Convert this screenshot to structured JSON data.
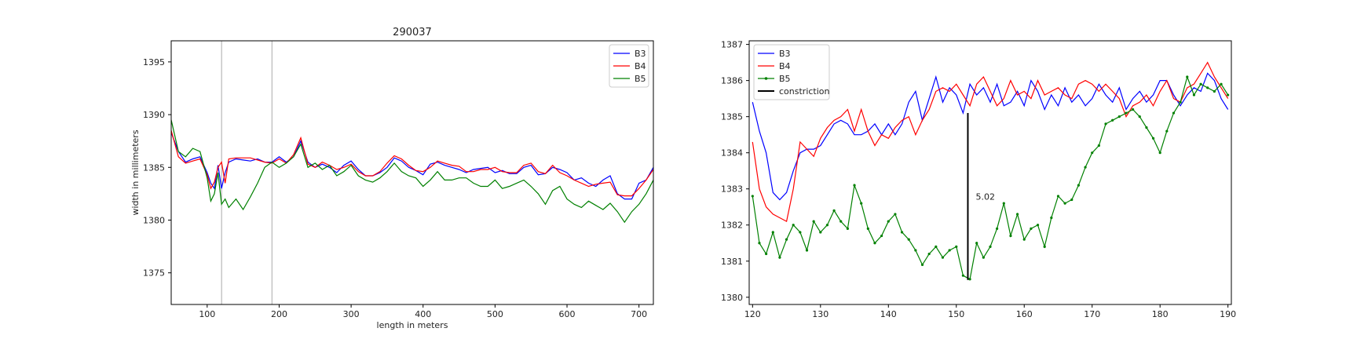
{
  "chart_data": [
    {
      "type": "line",
      "title": "290037",
      "xlabel": "length in meters",
      "ylabel": "width in millimeters",
      "xlim": [
        50,
        720
      ],
      "ylim": [
        1372,
        1397
      ],
      "xticks": [
        100,
        200,
        300,
        400,
        500,
        600,
        700
      ],
      "yticks": [
        1375,
        1380,
        1385,
        1390,
        1395
      ],
      "vlines": [
        120,
        190
      ],
      "legend": "top-right",
      "series": [
        {
          "name": "B3",
          "color": "#0000ff",
          "x": [
            50,
            60,
            70,
            80,
            90,
            100,
            105,
            110,
            115,
            120,
            125,
            130,
            140,
            150,
            160,
            170,
            180,
            190,
            200,
            210,
            220,
            230,
            240,
            250,
            260,
            270,
            280,
            290,
            300,
            310,
            320,
            330,
            340,
            350,
            360,
            370,
            380,
            390,
            400,
            410,
            420,
            430,
            440,
            450,
            460,
            470,
            480,
            490,
            500,
            510,
            520,
            530,
            540,
            550,
            560,
            570,
            580,
            590,
            600,
            610,
            620,
            630,
            640,
            650,
            660,
            670,
            680,
            690,
            700,
            710,
            720
          ],
          "y": [
            1388.3,
            1386.5,
            1385.5,
            1385.8,
            1386.0,
            1384.5,
            1383.5,
            1383.0,
            1385.2,
            1383.0,
            1384.5,
            1385.5,
            1385.8,
            1385.7,
            1385.6,
            1385.8,
            1385.5,
            1385.5,
            1386.0,
            1385.5,
            1386.0,
            1387.5,
            1385.5,
            1385.0,
            1385.3,
            1385.0,
            1384.5,
            1385.2,
            1385.6,
            1384.8,
            1384.2,
            1384.2,
            1384.5,
            1385.0,
            1385.9,
            1385.6,
            1385.0,
            1384.7,
            1384.3,
            1385.3,
            1385.5,
            1385.2,
            1385.0,
            1384.8,
            1384.5,
            1384.8,
            1384.9,
            1385.0,
            1384.5,
            1384.7,
            1384.4,
            1384.4,
            1385.0,
            1385.2,
            1384.3,
            1384.4,
            1385.0,
            1384.8,
            1384.5,
            1383.8,
            1384.0,
            1383.5,
            1383.2,
            1383.8,
            1384.2,
            1382.5,
            1382.0,
            1382.0,
            1383.5,
            1383.8,
            1385.0
          ]
        },
        {
          "name": "B4",
          "color": "#ff0000",
          "x": [
            50,
            60,
            70,
            80,
            90,
            100,
            105,
            110,
            115,
            120,
            125,
            130,
            140,
            150,
            160,
            170,
            180,
            190,
            200,
            210,
            220,
            230,
            240,
            250,
            260,
            270,
            280,
            290,
            300,
            310,
            320,
            330,
            340,
            350,
            360,
            370,
            380,
            390,
            400,
            410,
            420,
            430,
            440,
            450,
            460,
            470,
            480,
            490,
            500,
            510,
            520,
            530,
            540,
            550,
            560,
            570,
            580,
            590,
            600,
            610,
            620,
            630,
            640,
            650,
            660,
            670,
            680,
            690,
            700,
            710,
            720
          ],
          "y": [
            1388.5,
            1386.0,
            1385.4,
            1385.6,
            1385.8,
            1384.3,
            1383.0,
            1383.6,
            1385.0,
            1385.5,
            1383.5,
            1385.8,
            1385.9,
            1385.9,
            1385.9,
            1385.7,
            1385.5,
            1385.4,
            1385.8,
            1385.4,
            1386.2,
            1387.8,
            1385.3,
            1385.0,
            1385.5,
            1385.2,
            1384.8,
            1385.0,
            1385.3,
            1384.6,
            1384.2,
            1384.2,
            1384.6,
            1385.4,
            1386.1,
            1385.8,
            1385.2,
            1384.7,
            1384.6,
            1385.0,
            1385.6,
            1385.4,
            1385.2,
            1385.1,
            1384.6,
            1384.6,
            1384.8,
            1384.8,
            1385.0,
            1384.6,
            1384.5,
            1384.5,
            1385.2,
            1385.4,
            1384.6,
            1384.4,
            1385.2,
            1384.5,
            1384.2,
            1383.8,
            1383.5,
            1383.2,
            1383.4,
            1383.5,
            1383.6,
            1382.4,
            1382.3,
            1382.3,
            1383.0,
            1383.8,
            1384.8
          ]
        },
        {
          "name": "B5",
          "color": "#008000",
          "x": [
            50,
            60,
            70,
            80,
            90,
            100,
            105,
            110,
            115,
            120,
            125,
            130,
            140,
            150,
            160,
            170,
            180,
            190,
            200,
            210,
            220,
            230,
            240,
            250,
            260,
            270,
            280,
            290,
            300,
            310,
            320,
            330,
            340,
            350,
            360,
            370,
            380,
            390,
            400,
            410,
            420,
            430,
            440,
            450,
            460,
            470,
            480,
            490,
            500,
            510,
            520,
            530,
            540,
            550,
            560,
            570,
            580,
            590,
            600,
            610,
            620,
            630,
            640,
            650,
            660,
            670,
            680,
            690,
            700,
            710,
            720
          ],
          "y": [
            1389.5,
            1386.5,
            1386.0,
            1386.8,
            1386.5,
            1384.0,
            1381.8,
            1382.5,
            1384.5,
            1381.5,
            1382.0,
            1381.2,
            1382.0,
            1381.0,
            1382.2,
            1383.5,
            1385.0,
            1385.5,
            1385.0,
            1385.4,
            1386.0,
            1387.2,
            1385.0,
            1385.4,
            1384.8,
            1385.2,
            1384.2,
            1384.6,
            1385.2,
            1384.2,
            1383.8,
            1383.6,
            1384.0,
            1384.6,
            1385.4,
            1384.6,
            1384.2,
            1384.0,
            1383.2,
            1383.8,
            1384.6,
            1383.8,
            1383.8,
            1384.0,
            1384.0,
            1383.5,
            1383.2,
            1383.2,
            1383.8,
            1383.0,
            1383.2,
            1383.5,
            1383.8,
            1383.2,
            1382.5,
            1381.5,
            1382.8,
            1383.2,
            1382.0,
            1381.5,
            1381.2,
            1381.8,
            1381.4,
            1381.0,
            1381.6,
            1380.8,
            1379.8,
            1380.8,
            1381.5,
            1382.5,
            1383.8
          ]
        }
      ]
    },
    {
      "type": "line",
      "xlim": [
        119.5,
        190.5
      ],
      "ylim": [
        1379.8,
        1387.1
      ],
      "xticks": [
        120,
        130,
        140,
        150,
        160,
        170,
        180,
        190
      ],
      "yticks": [
        1380,
        1381,
        1382,
        1383,
        1384,
        1385,
        1386,
        1387
      ],
      "legend": "top-left",
      "annotation": {
        "text": "5.02",
        "x": 151.7,
        "y_bottom": 1380.48,
        "y_top": 1385.1
      },
      "series": [
        {
          "name": "B3",
          "color": "#0000ff",
          "x": [
            120,
            121,
            122,
            123,
            124,
            125,
            126,
            127,
            128,
            129,
            130,
            131,
            132,
            133,
            134,
            135,
            136,
            137,
            138,
            139,
            140,
            141,
            142,
            143,
            144,
            145,
            146,
            147,
            148,
            149,
            150,
            151,
            152,
            153,
            154,
            155,
            156,
            157,
            158,
            159,
            160,
            161,
            162,
            163,
            164,
            165,
            166,
            167,
            168,
            169,
            170,
            171,
            172,
            173,
            174,
            175,
            176,
            177,
            178,
            179,
            180,
            181,
            182,
            183,
            184,
            185,
            186,
            187,
            188,
            189,
            190
          ],
          "y": [
            1385.4,
            1384.6,
            1384.0,
            1382.9,
            1382.7,
            1382.9,
            1383.5,
            1384.0,
            1384.1,
            1384.1,
            1384.2,
            1384.5,
            1384.8,
            1384.9,
            1384.8,
            1384.5,
            1384.5,
            1384.6,
            1384.8,
            1384.5,
            1384.8,
            1384.5,
            1384.8,
            1385.4,
            1385.7,
            1384.9,
            1385.5,
            1386.1,
            1385.4,
            1385.8,
            1385.6,
            1385.1,
            1385.9,
            1385.6,
            1385.8,
            1385.4,
            1385.9,
            1385.3,
            1385.4,
            1385.7,
            1385.3,
            1386.0,
            1385.7,
            1385.2,
            1385.6,
            1385.3,
            1385.8,
            1385.4,
            1385.6,
            1385.3,
            1385.5,
            1385.9,
            1385.6,
            1385.4,
            1385.8,
            1385.2,
            1385.5,
            1385.7,
            1385.4,
            1385.6,
            1386.0,
            1386.0,
            1385.6,
            1385.3,
            1385.6,
            1385.8,
            1385.7,
            1386.2,
            1386.0,
            1385.5,
            1385.2
          ]
        },
        {
          "name": "B4",
          "color": "#ff0000",
          "x": [
            120,
            121,
            122,
            123,
            124,
            125,
            126,
            127,
            128,
            129,
            130,
            131,
            132,
            133,
            134,
            135,
            136,
            137,
            138,
            139,
            140,
            141,
            142,
            143,
            144,
            145,
            146,
            147,
            148,
            149,
            150,
            151,
            152,
            153,
            154,
            155,
            156,
            157,
            158,
            159,
            160,
            161,
            162,
            163,
            164,
            165,
            166,
            167,
            168,
            169,
            170,
            171,
            172,
            173,
            174,
            175,
            176,
            177,
            178,
            179,
            180,
            181,
            182,
            183,
            184,
            185,
            186,
            187,
            188,
            189,
            190
          ],
          "y": [
            1384.3,
            1383.0,
            1382.5,
            1382.3,
            1382.2,
            1382.1,
            1383.0,
            1384.3,
            1384.1,
            1383.9,
            1384.4,
            1384.7,
            1384.9,
            1385.0,
            1385.2,
            1384.6,
            1385.2,
            1384.6,
            1384.2,
            1384.5,
            1384.4,
            1384.7,
            1384.9,
            1385.0,
            1384.5,
            1384.9,
            1385.2,
            1385.7,
            1385.8,
            1385.7,
            1385.9,
            1385.6,
            1385.3,
            1385.9,
            1386.1,
            1385.7,
            1385.3,
            1385.5,
            1386.0,
            1385.6,
            1385.7,
            1385.5,
            1386.0,
            1385.6,
            1385.7,
            1385.8,
            1385.6,
            1385.5,
            1385.9,
            1386.0,
            1385.9,
            1385.7,
            1385.9,
            1385.7,
            1385.5,
            1385.0,
            1385.3,
            1385.4,
            1385.6,
            1385.3,
            1385.7,
            1386.0,
            1385.5,
            1385.4,
            1385.8,
            1385.9,
            1386.2,
            1386.5,
            1386.1,
            1385.8,
            1385.5
          ]
        },
        {
          "name": "B5",
          "color": "#008000",
          "marker": true,
          "x": [
            120,
            121,
            122,
            123,
            124,
            125,
            126,
            127,
            128,
            129,
            130,
            131,
            132,
            133,
            134,
            135,
            136,
            137,
            138,
            139,
            140,
            141,
            142,
            143,
            144,
            145,
            146,
            147,
            148,
            149,
            150,
            151,
            152,
            153,
            154,
            155,
            156,
            157,
            158,
            159,
            160,
            161,
            162,
            163,
            164,
            165,
            166,
            167,
            168,
            169,
            170,
            171,
            172,
            173,
            174,
            175,
            176,
            177,
            178,
            179,
            180,
            181,
            182,
            183,
            184,
            185,
            186,
            187,
            188,
            189,
            190
          ],
          "y": [
            1382.8,
            1381.5,
            1381.2,
            1381.8,
            1381.1,
            1381.6,
            1382.0,
            1381.8,
            1381.3,
            1382.1,
            1381.8,
            1382.0,
            1382.4,
            1382.1,
            1381.9,
            1383.1,
            1382.6,
            1381.9,
            1381.5,
            1381.7,
            1382.1,
            1382.3,
            1381.8,
            1381.6,
            1381.3,
            1380.9,
            1381.2,
            1381.4,
            1381.1,
            1381.3,
            1381.4,
            1380.6,
            1380.5,
            1381.5,
            1381.1,
            1381.4,
            1381.9,
            1382.6,
            1381.7,
            1382.3,
            1381.6,
            1381.9,
            1382.0,
            1381.4,
            1382.2,
            1382.8,
            1382.6,
            1382.7,
            1383.1,
            1383.6,
            1384.0,
            1384.2,
            1384.8,
            1384.9,
            1385.0,
            1385.1,
            1385.2,
            1385.0,
            1384.7,
            1384.4,
            1384.0,
            1384.6,
            1385.1,
            1385.4,
            1386.1,
            1385.6,
            1385.9,
            1385.8,
            1385.7,
            1385.9,
            1385.6
          ]
        }
      ]
    }
  ]
}
